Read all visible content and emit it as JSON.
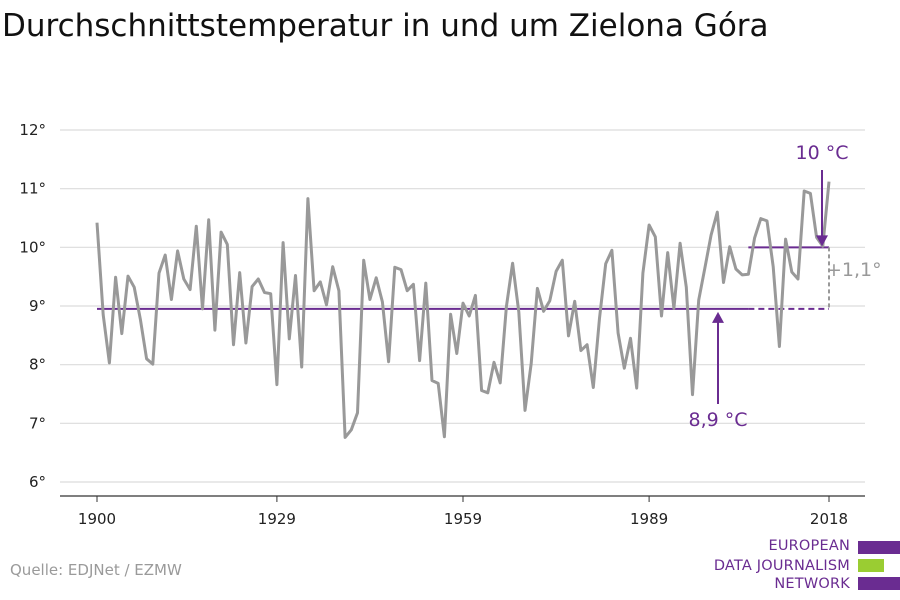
{
  "title": "Durchschnittstemperatur in und um Zielona Góra",
  "source": "Quelle: EDJNet / EZMW",
  "logo": {
    "lines": [
      "EUROPEAN",
      "DATA JOURNALISM",
      "NETWORK"
    ],
    "colors": {
      "purple": "#6a2c91",
      "green": "#9acd32"
    }
  },
  "chart_data": {
    "type": "line",
    "title": "Durchschnittstemperatur in und um Zielona Góra",
    "xlabel": "",
    "ylabel": "",
    "xlim": [
      1900,
      2018
    ],
    "ylim": [
      6,
      12
    ],
    "x_ticks": [
      1900,
      1929,
      1959,
      1989,
      2018
    ],
    "x_tick_labels": [
      "1900",
      "1929",
      "1959",
      "1989",
      "2018"
    ],
    "y_ticks": [
      6,
      7,
      8,
      9,
      10,
      11,
      12
    ],
    "y_tick_labels": [
      "6°",
      "7°",
      "8°",
      "9°",
      "10°",
      "11°",
      "12°"
    ],
    "grid": true,
    "series": [
      {
        "color": "#999999",
        "x": [
          1900,
          1901,
          1902,
          1903,
          1904,
          1905,
          1906,
          1907,
          1908,
          1909,
          1910,
          1911,
          1912,
          1913,
          1914,
          1915,
          1916,
          1917,
          1918,
          1919,
          1920,
          1921,
          1922,
          1923,
          1924,
          1925,
          1926,
          1927,
          1928,
          1929,
          1930,
          1931,
          1932,
          1933,
          1934,
          1935,
          1936,
          1937,
          1938,
          1939,
          1940,
          1941,
          1942,
          1943,
          1944,
          1945,
          1946,
          1947,
          1948,
          1949,
          1950,
          1951,
          1952,
          1953,
          1954,
          1955,
          1956,
          1957,
          1958,
          1959,
          1960,
          1961,
          1962,
          1963,
          1964,
          1965,
          1966,
          1967,
          1968,
          1969,
          1970,
          1971,
          1972,
          1973,
          1974,
          1975,
          1976,
          1977,
          1978,
          1979,
          1980,
          1981,
          1982,
          1983,
          1984,
          1985,
          1986,
          1987,
          1988,
          1989,
          1990,
          1991,
          1992,
          1993,
          1994,
          1995,
          1996,
          1997,
          1998,
          1999,
          2000,
          2001,
          2002,
          2003,
          2004,
          2005,
          2006,
          2007,
          2008,
          2009,
          2010,
          2011,
          2012,
          2013,
          2014,
          2015,
          2016,
          2017,
          2018
        ],
        "values": [
          10.42,
          8.85,
          8.03,
          9.49,
          8.53,
          9.51,
          9.32,
          8.77,
          8.1,
          8.01,
          9.56,
          9.87,
          9.11,
          9.94,
          9.46,
          9.28,
          10.36,
          8.95,
          10.47,
          8.59,
          10.26,
          10.05,
          8.34,
          9.57,
          8.37,
          9.33,
          9.46,
          9.23,
          9.21,
          7.66,
          10.08,
          8.44,
          9.52,
          7.96,
          10.83,
          9.26,
          9.41,
          9.02,
          9.67,
          9.26,
          6.76,
          6.89,
          7.18,
          9.78,
          9.11,
          9.48,
          9.07,
          8.05,
          9.66,
          9.62,
          9.26,
          9.37,
          8.07,
          9.39,
          7.73,
          7.68,
          6.77,
          8.86,
          8.19,
          9.05,
          8.83,
          9.18,
          7.56,
          7.52,
          8.04,
          7.69,
          8.99,
          9.73,
          8.9,
          7.22,
          8.02,
          9.3,
          8.91,
          9.09,
          9.59,
          9.78,
          8.49,
          9.08,
          8.24,
          8.34,
          7.61,
          8.79,
          9.72,
          9.95,
          8.54,
          7.94,
          8.45,
          7.6,
          9.56,
          10.38,
          10.18,
          8.83,
          9.91,
          8.96,
          10.07,
          9.32,
          7.49,
          9.1,
          9.65,
          10.21,
          10.6,
          9.4,
          10.01,
          9.63,
          9.53,
          9.54,
          10.16,
          10.49,
          10.45,
          9.67,
          8.31,
          10.14,
          9.58,
          9.46,
          10.96,
          10.92,
          10.17,
          10.02,
          11.12
        ]
      }
    ],
    "reference_lines": [
      {
        "label": "8,9 °C",
        "value": 8.95,
        "color": "#6a2c91"
      },
      {
        "label": "10 °C",
        "value": 10.0,
        "color": "#6a2c91"
      }
    ],
    "annotations": [
      {
        "text": "10 °C",
        "color": "#6a2c91"
      },
      {
        "text": "8,9 °C",
        "color": "#6a2c91"
      },
      {
        "text": "+1,1°",
        "color": "#999999"
      }
    ]
  }
}
